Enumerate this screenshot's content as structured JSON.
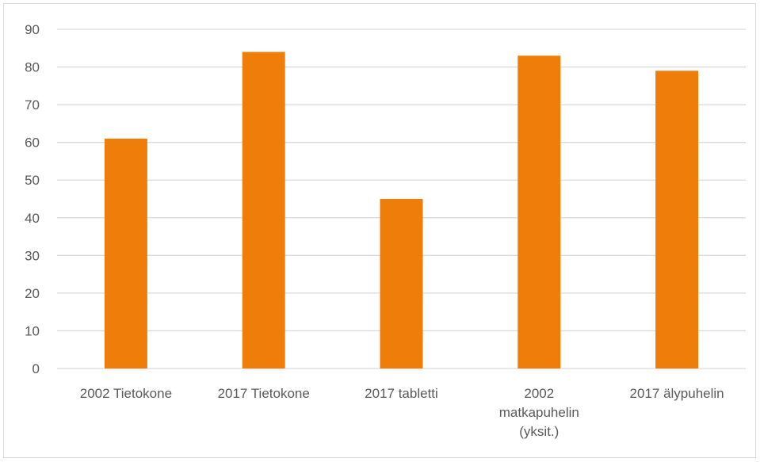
{
  "chart_data": {
    "type": "bar",
    "title": "",
    "xlabel": "",
    "ylabel": "",
    "categories": [
      [
        "2002 Tietokone"
      ],
      [
        "2017 Tietokone"
      ],
      [
        "2017 tabletti"
      ],
      [
        "2002",
        "matkapuhelin",
        "(yksit.)"
      ],
      [
        "2017 älypuhelin"
      ]
    ],
    "values": [
      61,
      84,
      45,
      83,
      79
    ],
    "ylim": [
      0,
      90
    ],
    "yticks": [
      0,
      10,
      20,
      30,
      40,
      50,
      60,
      70,
      80,
      90
    ],
    "grid": true,
    "legend": "none",
    "colors": {
      "bar": "#ee7d0a",
      "grid": "#d9d9d9",
      "text": "#595959"
    }
  }
}
